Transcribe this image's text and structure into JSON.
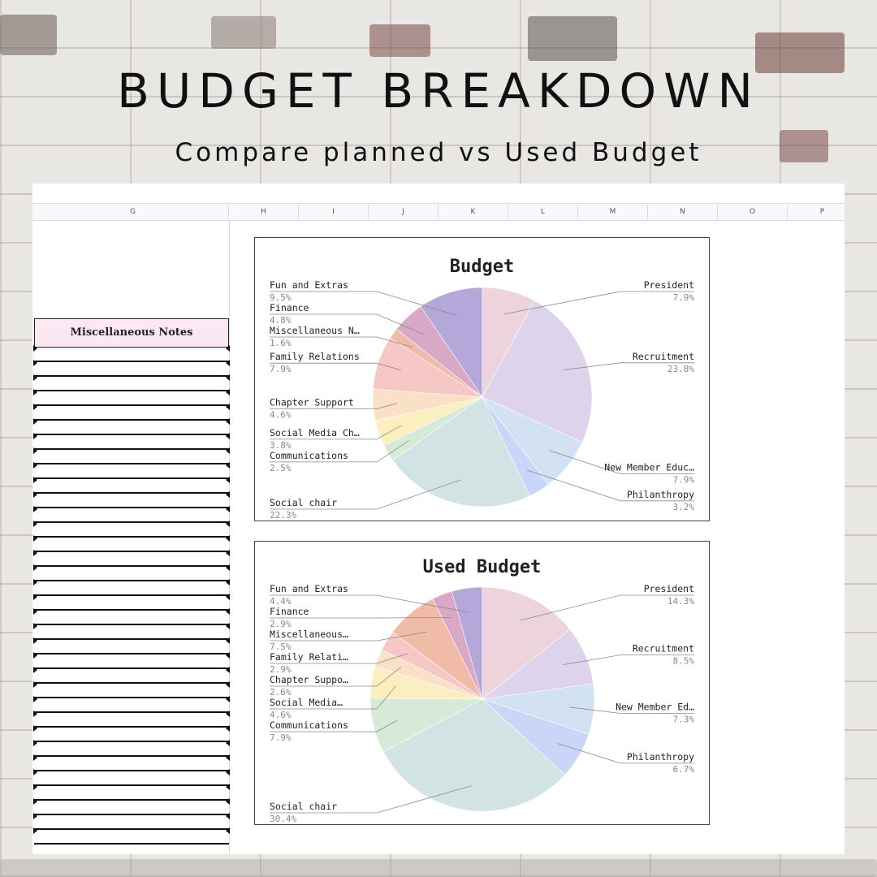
{
  "page": {
    "title": "BUDGET BREAKDOWN",
    "subtitle": "Compare planned vs Used Budget"
  },
  "sheet": {
    "columns": [
      "G",
      "H",
      "I",
      "J",
      "K",
      "L",
      "M",
      "N",
      "O",
      "P"
    ],
    "misc_header": "Miscellaneous Notes"
  },
  "colors": {
    "President": "#ecd3dc",
    "Recruitment": "#ddd3eb",
    "New Member Education": "#d2e2f2",
    "Philanthropy": "#c9d6f7",
    "Social chair": "#d2e3e4",
    "Communications": "#d7ead7",
    "Social Media Chair": "#fcefbf",
    "Chapter Support": "#fbe0c8",
    "Family Relations": "#f5c8c5",
    "Miscellaneous Notes": "#f0bca8",
    "Finance": "#d9a8c6",
    "Fun and Extras": "#b4a8da"
  },
  "chart_data": [
    {
      "type": "pie",
      "title": "Budget",
      "slices": [
        {
          "category": "President",
          "label": "President",
          "percent": 7.9,
          "pct_label": "7.9%"
        },
        {
          "category": "Recruitment",
          "label": "Recruitment",
          "percent": 23.8,
          "pct_label": "23.8%"
        },
        {
          "category": "New Member Education",
          "label": "New Member Educ…",
          "percent": 7.9,
          "pct_label": "7.9%"
        },
        {
          "category": "Philanthropy",
          "label": "Philanthropy",
          "percent": 3.2,
          "pct_label": "3.2%"
        },
        {
          "category": "Social chair",
          "label": "Social chair",
          "percent": 22.3,
          "pct_label": "22.3%"
        },
        {
          "category": "Communications",
          "label": "Communications",
          "percent": 2.5,
          "pct_label": "2.5%"
        },
        {
          "category": "Social Media Chair",
          "label": "Social Media Ch…",
          "percent": 3.8,
          "pct_label": "3.8%"
        },
        {
          "category": "Chapter Support",
          "label": "Chapter Support",
          "percent": 4.6,
          "pct_label": "4.6%"
        },
        {
          "category": "Family Relations",
          "label": "Family Relations",
          "percent": 7.9,
          "pct_label": "7.9%"
        },
        {
          "category": "Miscellaneous Notes",
          "label": "Miscellaneous N…",
          "percent": 1.6,
          "pct_label": "1.6%"
        },
        {
          "category": "Finance",
          "label": "Finance",
          "percent": 4.8,
          "pct_label": "4.8%"
        },
        {
          "category": "Fun and Extras",
          "label": "Fun and Extras",
          "percent": 9.5,
          "pct_label": "9.5%"
        }
      ]
    },
    {
      "type": "pie",
      "title": "Used Budget",
      "slices": [
        {
          "category": "President",
          "label": "President",
          "percent": 14.3,
          "pct_label": "14.3%"
        },
        {
          "category": "Recruitment",
          "label": "Recruitment",
          "percent": 8.5,
          "pct_label": "8.5%"
        },
        {
          "category": "New Member Education",
          "label": "New Member Ed…",
          "percent": 7.3,
          "pct_label": "7.3%"
        },
        {
          "category": "Philanthropy",
          "label": "Philanthropy",
          "percent": 6.7,
          "pct_label": "6.7%"
        },
        {
          "category": "Social chair",
          "label": "Social chair",
          "percent": 30.4,
          "pct_label": "30.4%"
        },
        {
          "category": "Communications",
          "label": "Communications",
          "percent": 7.9,
          "pct_label": "7.9%"
        },
        {
          "category": "Social Media Chair",
          "label": "Social Media…",
          "percent": 4.6,
          "pct_label": "4.6%"
        },
        {
          "category": "Chapter Support",
          "label": "Chapter Suppo…",
          "percent": 2.6,
          "pct_label": "2.6%"
        },
        {
          "category": "Family Relations",
          "label": "Family Relati…",
          "percent": 2.9,
          "pct_label": "2.9%"
        },
        {
          "category": "Miscellaneous Notes",
          "label": "Miscellaneous…",
          "percent": 7.5,
          "pct_label": "7.5%"
        },
        {
          "category": "Finance",
          "label": "Finance",
          "percent": 2.9,
          "pct_label": "2.9%"
        },
        {
          "category": "Fun and Extras",
          "label": "Fun and Extras",
          "percent": 4.4,
          "pct_label": "4.4%"
        }
      ]
    }
  ]
}
